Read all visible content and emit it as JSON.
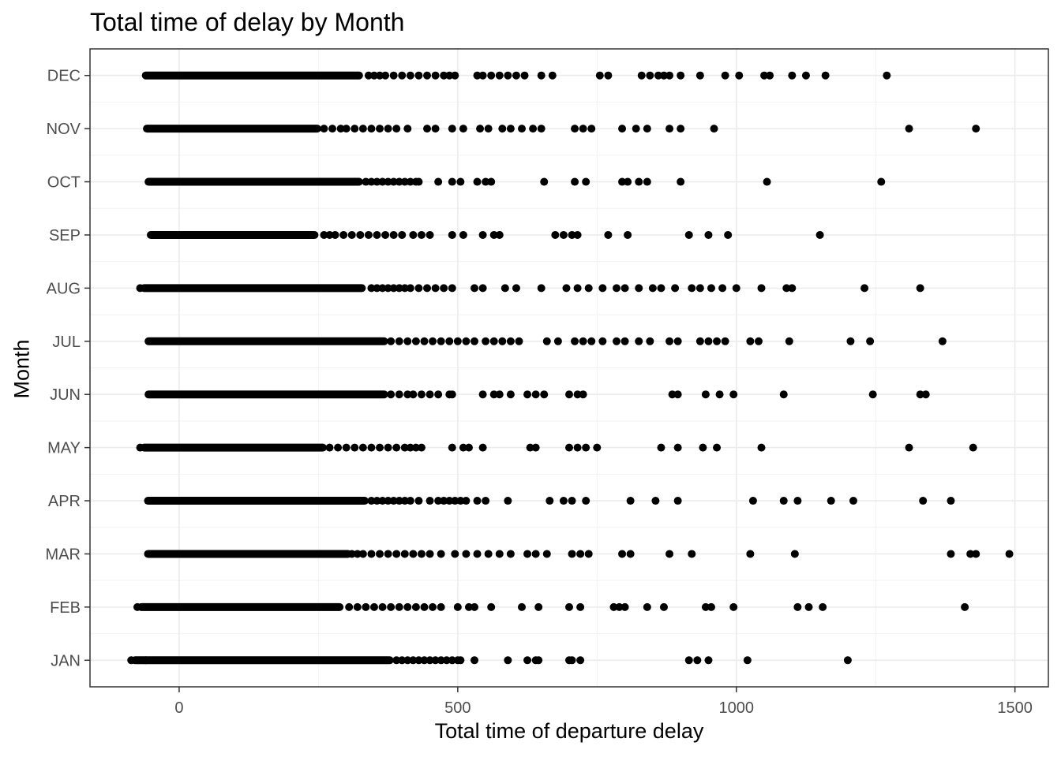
{
  "chart_data": {
    "type": "scatter",
    "title": "Total time of delay by Month",
    "xlabel": "Total time of departure delay",
    "ylabel": "Month",
    "xlim": [
      -160,
      1560
    ],
    "x_ticks": [
      0,
      500,
      1000,
      1500
    ],
    "categories": [
      "JAN",
      "FEB",
      "MAR",
      "APR",
      "MAY",
      "JUN",
      "JUL",
      "AUG",
      "SEP",
      "OCT",
      "NOV",
      "DEC"
    ],
    "grid": true,
    "legend": "none",
    "point_color": "#000000",
    "series": [
      {
        "category": "JAN",
        "dense_range": [
          -86,
          385
        ],
        "x": [
          -86,
          -60,
          390,
          400,
          410,
          420,
          430,
          440,
          450,
          460,
          470,
          480,
          490,
          500,
          505,
          530,
          590,
          625,
          640,
          645,
          700,
          705,
          720,
          915,
          930,
          950,
          1020,
          1200
        ]
      },
      {
        "category": "FEB",
        "dense_range": [
          -75,
          295
        ],
        "x": [
          -75,
          305,
          320,
          335,
          350,
          365,
          380,
          395,
          410,
          425,
          440,
          455,
          470,
          500,
          520,
          530,
          560,
          615,
          645,
          700,
          720,
          780,
          790,
          800,
          840,
          870,
          945,
          955,
          995,
          1110,
          1130,
          1155,
          1410
        ]
      },
      {
        "category": "MAR",
        "dense_range": [
          -63,
          310
        ],
        "x": [
          310,
          320,
          330,
          345,
          360,
          375,
          390,
          405,
          420,
          435,
          450,
          470,
          495,
          515,
          535,
          555,
          575,
          595,
          625,
          640,
          660,
          705,
          720,
          735,
          795,
          810,
          880,
          920,
          1025,
          1105,
          1385,
          1420,
          1430,
          1490
        ]
      },
      {
        "category": "APR",
        "dense_range": [
          -63,
          340
        ],
        "x": [
          345,
          355,
          365,
          375,
          385,
          395,
          405,
          415,
          430,
          450,
          465,
          475,
          485,
          495,
          505,
          515,
          535,
          550,
          590,
          665,
          690,
          705,
          730,
          810,
          855,
          895,
          1030,
          1085,
          1110,
          1170,
          1210,
          1335,
          1385
        ]
      },
      {
        "category": "MAY",
        "dense_range": [
          -70,
          265
        ],
        "x": [
          -70,
          270,
          285,
          300,
          315,
          330,
          345,
          360,
          375,
          390,
          405,
          415,
          425,
          435,
          490,
          510,
          520,
          545,
          630,
          640,
          700,
          715,
          730,
          750,
          865,
          895,
          940,
          965,
          1045,
          1310,
          1425
        ]
      },
      {
        "category": "JUN",
        "dense_range": [
          -62,
          375
        ],
        "x": [
          380,
          395,
          410,
          420,
          435,
          450,
          465,
          485,
          490,
          545,
          565,
          575,
          595,
          625,
          640,
          655,
          700,
          715,
          725,
          885,
          895,
          945,
          970,
          995,
          1085,
          1245,
          1330,
          1340
        ]
      },
      {
        "category": "JUL",
        "dense_range": [
          -62,
          375
        ],
        "x": [
          380,
          395,
          410,
          425,
          440,
          455,
          470,
          485,
          500,
          515,
          530,
          550,
          565,
          580,
          595,
          610,
          660,
          680,
          710,
          725,
          740,
          760,
          785,
          800,
          825,
          845,
          880,
          895,
          935,
          950,
          965,
          980,
          1025,
          1040,
          1095,
          1205,
          1240,
          1370
        ]
      },
      {
        "category": "AUG",
        "dense_range": [
          -70,
          335
        ],
        "x": [
          -70,
          345,
          355,
          365,
          375,
          385,
          395,
          405,
          415,
          430,
          445,
          460,
          475,
          490,
          530,
          545,
          585,
          605,
          650,
          695,
          715,
          735,
          760,
          785,
          800,
          825,
          850,
          865,
          890,
          920,
          935,
          955,
          975,
          1000,
          1045,
          1090,
          1100,
          1230,
          1330
        ]
      },
      {
        "category": "SEP",
        "dense_range": [
          -58,
          250
        ],
        "x": [
          260,
          270,
          280,
          295,
          310,
          325,
          340,
          355,
          370,
          385,
          400,
          420,
          435,
          450,
          490,
          510,
          545,
          565,
          575,
          675,
          690,
          705,
          715,
          770,
          805,
          915,
          950,
          985,
          1150
        ]
      },
      {
        "category": "OCT",
        "dense_range": [
          -62,
          330
        ],
        "x": [
          335,
          345,
          355,
          365,
          375,
          385,
          395,
          405,
          415,
          425,
          430,
          465,
          490,
          505,
          535,
          550,
          560,
          655,
          710,
          730,
          795,
          805,
          825,
          840,
          900,
          1055,
          1260
        ]
      },
      {
        "category": "NOV",
        "dense_range": [
          -65,
          255
        ],
        "x": [
          260,
          275,
          290,
          300,
          315,
          330,
          345,
          360,
          375,
          390,
          410,
          445,
          460,
          490,
          510,
          540,
          555,
          580,
          595,
          615,
          635,
          650,
          710,
          725,
          740,
          795,
          820,
          840,
          880,
          900,
          960,
          1310,
          1430
        ]
      },
      {
        "category": "DEC",
        "dense_range": [
          -67,
          330
        ],
        "x": [
          340,
          350,
          360,
          370,
          385,
          400,
          415,
          430,
          445,
          460,
          475,
          485,
          495,
          535,
          545,
          560,
          575,
          590,
          605,
          620,
          650,
          670,
          755,
          770,
          830,
          845,
          860,
          870,
          880,
          900,
          935,
          980,
          1005,
          1050,
          1060,
          1100,
          1125,
          1160,
          1270
        ]
      }
    ]
  }
}
